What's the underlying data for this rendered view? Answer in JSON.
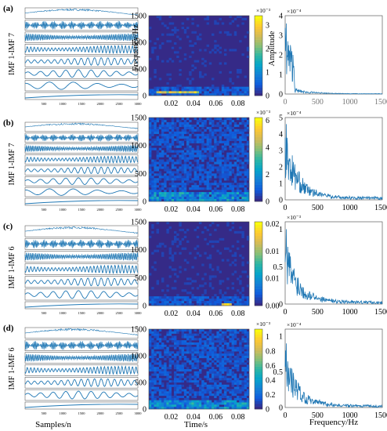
{
  "rows": [
    {
      "label": "(a)",
      "imf_label": "IMF 1-IMF 7",
      "imf_count": 7,
      "samples_ticks": [
        "500",
        "1000",
        "1500",
        "2000",
        "2500",
        "3000"
      ],
      "sample_range": [
        0,
        3000
      ],
      "time_ticks": [
        "0.02",
        "0.04",
        "0.06",
        "0.08"
      ],
      "freq_ticks": [
        "0",
        "500",
        "1000",
        "1500"
      ],
      "colorbar_exp": "×10⁻³",
      "colorbar_ticks": [
        "0",
        "1",
        "2",
        "3"
      ],
      "colorbar_max": 3.4,
      "spectrum_exp": "×10⁻⁴",
      "spectrum_yticks": [
        "0",
        "1",
        "2",
        "3",
        "4"
      ],
      "spectrum_ymax": 4,
      "spectrum_peak": 3.6,
      "spectrum_xticks": [
        "0",
        "500",
        "1000",
        "1500"
      ],
      "spectrum_show_xticks": false,
      "spectrum_ylabel": "Amplitude"
    },
    {
      "label": "(b)",
      "imf_label": "IMF 1-IMF 7",
      "imf_count": 7,
      "samples_ticks": [
        "500",
        "1000",
        "1500",
        "2000",
        "2500",
        "3000"
      ],
      "sample_range": [
        0,
        3000
      ],
      "time_ticks": [
        "0.02",
        "0.04",
        "0.06",
        "0.08"
      ],
      "freq_ticks": [
        "0",
        "500",
        "1000",
        "1500"
      ],
      "colorbar_exp": "×10⁻³",
      "colorbar_ticks": [
        "0",
        "2",
        "4",
        "6"
      ],
      "colorbar_max": 6.2,
      "spectrum_exp": "×10⁻⁴",
      "spectrum_yticks": [
        "0",
        "1",
        "2",
        "3",
        "4",
        "5"
      ],
      "spectrum_ymax": 5,
      "spectrum_peak": 4.6,
      "spectrum_xticks": [
        "0",
        "500",
        "1000",
        "1500"
      ],
      "spectrum_show_xticks": true
    },
    {
      "label": "(c)",
      "imf_label": "IMF 1-IMF 6",
      "imf_count": 6,
      "samples_ticks": [
        "500",
        "1000",
        "1500",
        "2000",
        "2500",
        "3000"
      ],
      "sample_range": [
        0,
        3000
      ],
      "time_ticks": [
        "0.02",
        "0.04",
        "0.06",
        "0.08"
      ],
      "freq_ticks": [
        "0",
        "500",
        "1000",
        "1500"
      ],
      "colorbar_exp": "",
      "colorbar_ticks": [
        "0.00",
        "0.01",
        "0.01",
        "0.02"
      ],
      "colorbar_max": 0.02,
      "spectrum_exp": "×10⁻³",
      "spectrum_yticks": [
        "0",
        "0.5",
        "1"
      ],
      "spectrum_ymax": 1.1,
      "spectrum_peak": 1.0,
      "spectrum_xticks": [
        "0",
        "500",
        "1000",
        "1500"
      ],
      "spectrum_show_xticks": true
    },
    {
      "label": "(d)",
      "imf_label": "IMF 1-IMF 6",
      "imf_count": 6,
      "samples_ticks": [
        "500",
        "1000",
        "1500",
        "2000",
        "2500",
        "3000"
      ],
      "sample_range": [
        0,
        3000
      ],
      "time_ticks": [
        "0.02",
        "0.04",
        "0.06",
        "0.08"
      ],
      "freq_ticks": [
        "0",
        "500",
        "1000",
        "1500"
      ],
      "colorbar_exp": "×10⁻³",
      "colorbar_ticks": [
        "0",
        "0.2",
        "0.4",
        "0.6",
        "0.8",
        "1"
      ],
      "colorbar_max": 1.1,
      "spectrum_exp": "×10⁻⁴",
      "spectrum_yticks": [
        "0",
        "0.5",
        "1"
      ],
      "spectrum_ymax": 1.1,
      "spectrum_peak": 0.9,
      "spectrum_xticks": [
        "0",
        "500",
        "1000",
        "1500"
      ],
      "spectrum_show_xticks": true
    }
  ],
  "bottom_labels": {
    "left": "Samples/n",
    "middle": "Time/s",
    "right": "Frequency/Hz"
  },
  "spectrogram_ylabel": "Frequency/Hz",
  "colors": {
    "signal": "#1f77b4",
    "axes": "#444444",
    "parula": [
      "#352a87",
      "#0f5cdd",
      "#1481d6",
      "#06a4ca",
      "#2eb7a4",
      "#87bf77",
      "#d1bb59",
      "#fec832",
      "#f9fb0e"
    ]
  },
  "chart_data": [
    {
      "type": "line",
      "title": "",
      "panel": "(a) IMF decomposition",
      "xlabel": "Samples/n",
      "ylabel": "IMF 1-IMF 7",
      "x_range": [
        0,
        3000
      ],
      "series_count": 7
    },
    {
      "type": "heatmap",
      "panel": "(a) time-frequency spectrum",
      "xlabel": "Time/s",
      "ylabel": "Frequency/Hz",
      "x_range": [
        0,
        0.09
      ],
      "y_range": [
        0,
        1500
      ],
      "colorbar_range": [
        0,
        0.0034
      ]
    },
    {
      "type": "line",
      "panel": "(a) marginal spectrum",
      "xlabel": "Frequency/Hz",
      "ylabel": "Amplitude",
      "x_range": [
        0,
        1500
      ],
      "y_range": [
        0,
        0.0004
      ],
      "peak_x": 120,
      "peak_y": 0.00036
    },
    {
      "type": "line",
      "panel": "(b) marginal spectrum",
      "xlabel": "Frequency/Hz",
      "x_range": [
        0,
        1500
      ],
      "y_range": [
        0,
        0.0005
      ],
      "peak_x": 40,
      "peak_y": 0.00046
    },
    {
      "type": "line",
      "panel": "(c) marginal spectrum",
      "xlabel": "Frequency/Hz",
      "x_range": [
        0,
        1500
      ],
      "y_range": [
        0,
        0.0011
      ],
      "peak_x": 30,
      "peak_y": 0.001
    },
    {
      "type": "line",
      "panel": "(d) marginal spectrum",
      "xlabel": "Frequency/Hz",
      "x_range": [
        0,
        1500
      ],
      "y_range": [
        0,
        0.00011
      ],
      "peak_x": 40,
      "peak_y": 9e-05
    }
  ]
}
